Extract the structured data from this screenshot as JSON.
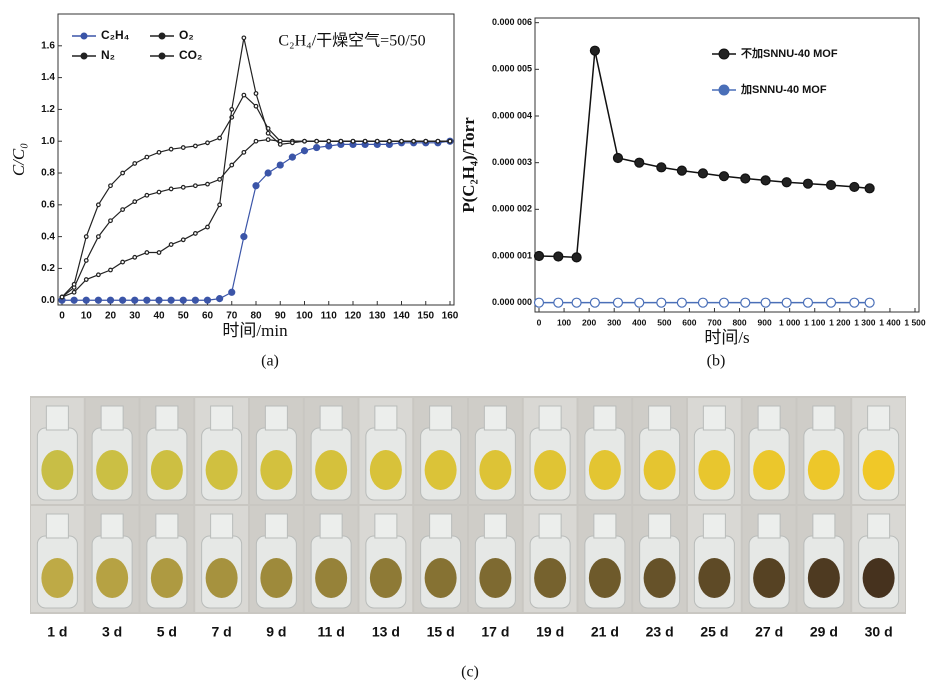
{
  "chart_data": [
    {
      "type": "line",
      "caption": "(a)",
      "x_label": "时间/min",
      "y_label": "C/C₀",
      "annotation": "C₂H₄/干燥空气=50/50",
      "x": [
        0,
        5,
        10,
        15,
        20,
        25,
        30,
        35,
        40,
        45,
        50,
        55,
        60,
        65,
        70,
        75,
        80,
        85,
        90,
        95,
        100,
        105,
        110,
        115,
        120,
        125,
        130,
        135,
        140,
        145,
        150,
        155,
        160
      ],
      "series": [
        {
          "name": "C₂H₄",
          "color": "#3b55a8",
          "values": [
            0,
            0,
            0,
            0,
            0,
            0,
            0,
            0,
            0,
            0,
            0,
            0,
            0,
            0.01,
            0.05,
            0.4,
            0.72,
            0.8,
            0.85,
            0.9,
            0.94,
            0.96,
            0.97,
            0.98,
            0.98,
            0.98,
            0.98,
            0.98,
            0.99,
            0.99,
            0.99,
            0.99,
            1.0
          ]
        },
        {
          "name": "O₂",
          "color": "#222222",
          "values": [
            0.02,
            0.08,
            0.25,
            0.4,
            0.5,
            0.57,
            0.62,
            0.66,
            0.68,
            0.7,
            0.71,
            0.72,
            0.73,
            0.76,
            0.85,
            0.93,
            1.0,
            1.01,
            1.0,
            1.0,
            1.0,
            1.0,
            1.0,
            1.0,
            1.0,
            1.0,
            1.0,
            1.0,
            1.0,
            1.0,
            1.0,
            1.0,
            1.0
          ]
        },
        {
          "name": "N₂",
          "color": "#222222",
          "values": [
            0.02,
            0.1,
            0.4,
            0.6,
            0.72,
            0.8,
            0.86,
            0.9,
            0.93,
            0.95,
            0.96,
            0.97,
            0.99,
            1.02,
            1.15,
            1.29,
            1.22,
            1.08,
            1.0,
            1.0,
            1.0,
            1.0,
            1.0,
            1.0,
            1.0,
            1.0,
            1.0,
            1.0,
            1.0,
            1.0,
            1.0,
            1.0,
            1.0
          ]
        },
        {
          "name": "CO₂",
          "color": "#222222",
          "values": [
            0.02,
            0.05,
            0.13,
            0.16,
            0.19,
            0.24,
            0.27,
            0.3,
            0.3,
            0.35,
            0.38,
            0.42,
            0.46,
            0.6,
            1.2,
            1.65,
            1.3,
            1.05,
            0.98,
            0.99,
            1.0,
            1.0,
            1.0,
            1.0,
            1.0,
            1.0,
            1.0,
            1.0,
            1.0,
            1.0,
            1.0,
            1.0,
            1.0
          ]
        }
      ],
      "xlim": [
        0,
        160
      ],
      "xticks": [
        0,
        10,
        20,
        30,
        40,
        50,
        60,
        70,
        80,
        90,
        100,
        110,
        120,
        130,
        140,
        150,
        160
      ],
      "ylim": [
        -0.03,
        1.8
      ],
      "yticks": [
        {
          "value": 0,
          "label": "0.0"
        },
        {
          "value": 0.2,
          "label": "0.2"
        },
        {
          "value": 0.4,
          "label": "0.4"
        },
        {
          "value": 0.6,
          "label": "0.6"
        },
        {
          "value": 0.8,
          "label": "0.8"
        },
        {
          "value": 1,
          "label": "1.0"
        },
        {
          "value": 1.2,
          "label": "1.2"
        },
        {
          "value": 1.4,
          "label": "1.4"
        },
        {
          "value": 1.6,
          "label": "1.6"
        }
      ],
      "legend": "top-left"
    },
    {
      "type": "line",
      "caption": "(b)",
      "x_label": "时间/s",
      "y_label": "P(C₂H₄)/Torr",
      "x": [
        0,
        77,
        150,
        223,
        315,
        400,
        488,
        570,
        654,
        738,
        823,
        904,
        988,
        1073,
        1165,
        1258,
        1319
      ],
      "series": [
        {
          "name": "不加SNNU-40 MOF",
          "color": "#111111",
          "values": [
            1e-06,
            9.9e-07,
            9.7e-07,
            5.4e-06,
            3.1e-06,
            3e-06,
            2.9e-06,
            2.83e-06,
            2.77e-06,
            2.71e-06,
            2.66e-06,
            2.62e-06,
            2.58e-06,
            2.55e-06,
            2.52e-06,
            2.48e-06,
            2.45e-06
          ]
        },
        {
          "name": "加SNNU-40 MOF",
          "color": "#4a6fb8",
          "values": [
            0,
            0,
            0,
            0,
            0,
            0,
            0,
            0,
            0,
            0,
            0,
            0,
            0,
            0,
            0,
            0,
            0
          ]
        }
      ],
      "xlim": [
        0,
        1500
      ],
      "xticks": [
        0,
        100,
        200,
        300,
        400,
        500,
        600,
        700,
        800,
        900,
        {
          "value": 1000,
          "label": "1 000"
        },
        {
          "value": 1100,
          "label": "1 100"
        },
        {
          "value": 1200,
          "label": "1 200"
        },
        {
          "value": 1300,
          "label": "1 300"
        },
        {
          "value": 1400,
          "label": "1 400"
        },
        {
          "value": 1500,
          "label": "1 500"
        }
      ],
      "ylim": [
        -2e-07,
        6.1e-06
      ],
      "yticks": [
        {
          "value": 0,
          "label": "0.000 000"
        },
        {
          "value": 1e-06,
          "label": "0.000 001"
        },
        {
          "value": 2e-06,
          "label": "0.000 002"
        },
        {
          "value": 3e-06,
          "label": "0.000 003"
        },
        {
          "value": 4e-06,
          "label": "0.000 004"
        },
        {
          "value": 5e-06,
          "label": "0.000 005"
        },
        {
          "value": 6e-06,
          "label": "0.000 006"
        }
      ],
      "legend": "top-right"
    }
  ],
  "photos": {
    "labels": [
      "1 d",
      "3 d",
      "5 d",
      "7 d",
      "9 d",
      "11 d",
      "13 d",
      "15 d",
      "17 d",
      "19 d",
      "21 d",
      "23 d",
      "25 d",
      "27 d",
      "29 d",
      "30 d"
    ],
    "caption": "(c)"
  }
}
